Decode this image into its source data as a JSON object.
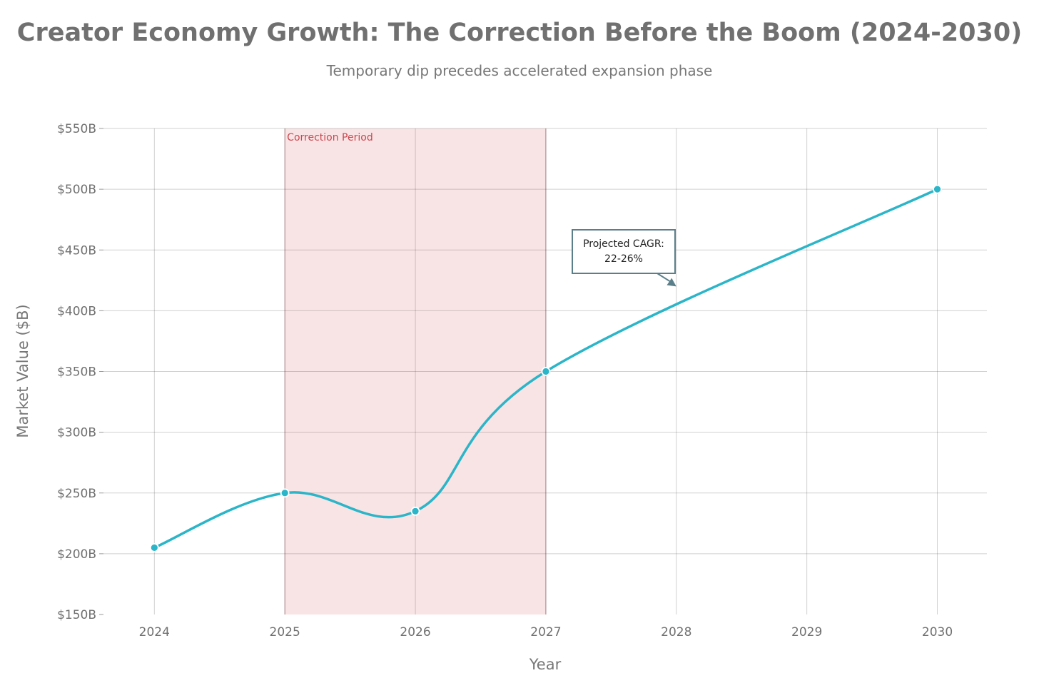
{
  "chart_data": {
    "type": "line",
    "title": "Creator Economy Growth: The Correction Before the Boom (2024-2030)",
    "subtitle": "Temporary dip precedes accelerated expansion phase",
    "xlabel": "Year",
    "ylabel": "Market Value ($B)",
    "x": [
      2024,
      2025,
      2026,
      2027,
      2030
    ],
    "x_ticks": [
      2024,
      2025,
      2026,
      2027,
      2028,
      2029,
      2030
    ],
    "x_tick_labels": [
      "2024",
      "2025",
      "2026",
      "2027",
      "2028",
      "2029",
      "2030"
    ],
    "y_ticks": [
      150,
      200,
      250,
      300,
      350,
      400,
      450,
      500,
      550
    ],
    "y_tick_labels": [
      "$150B",
      "$200B",
      "$250B",
      "$300B",
      "$350B",
      "$400B",
      "$450B",
      "$500B",
      "$550B"
    ],
    "xlim": [
      2023.61,
      2030.38
    ],
    "ylim": [
      150,
      550
    ],
    "grid": true,
    "series": [
      {
        "name": "Market Value",
        "color": "#2bb5c8",
        "values": [
          205,
          250,
          235,
          350,
          500
        ]
      }
    ],
    "shaded_region": {
      "label": "Correction Period",
      "x_start": 2025,
      "x_end": 2027,
      "color": "#f2c4c6",
      "label_color": "#c9474e"
    },
    "annotation": {
      "text_lines": [
        "Projected CAGR:",
        "22-26%"
      ],
      "point_x": 2028,
      "point_y": 420,
      "border_color": "#5b7f8a"
    }
  }
}
